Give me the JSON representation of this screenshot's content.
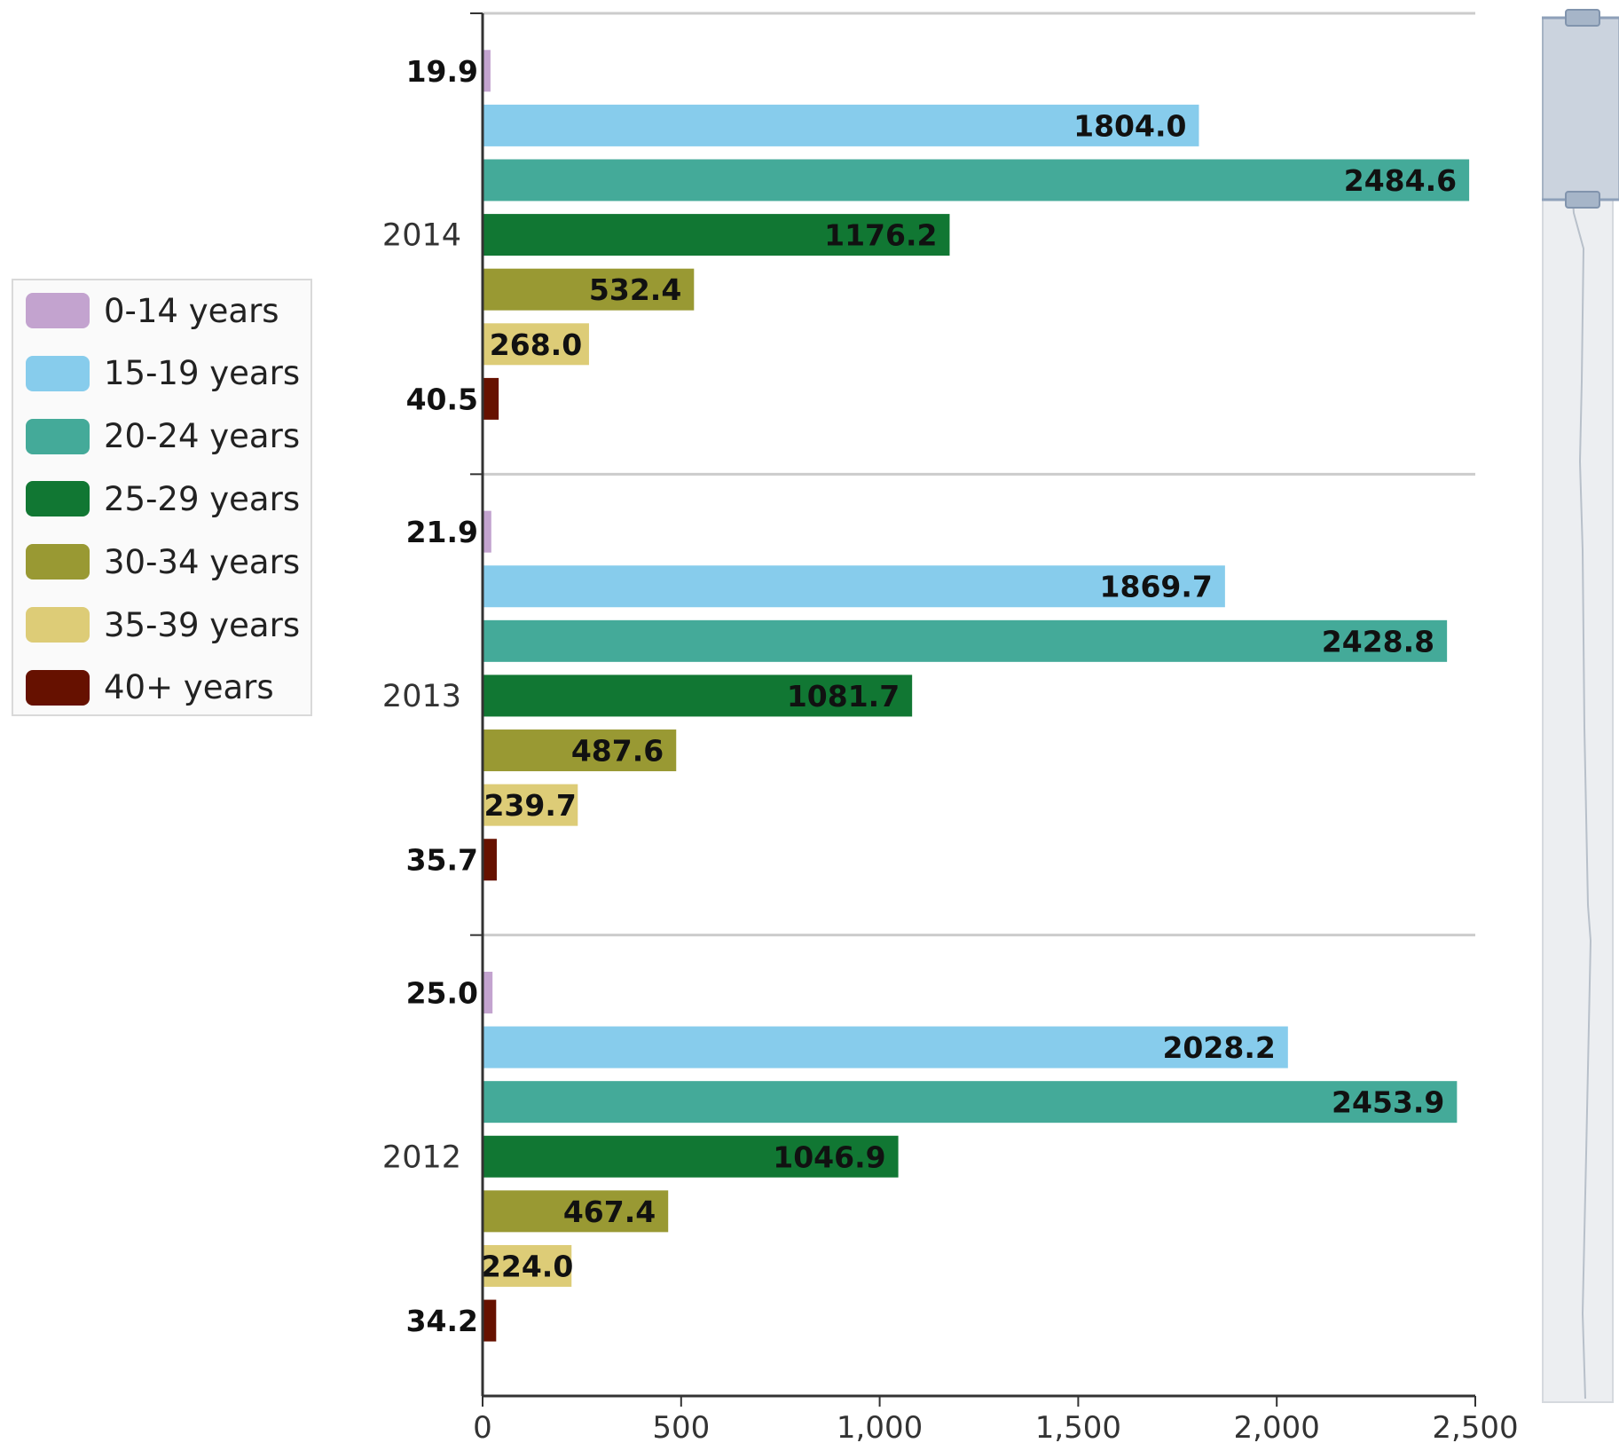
{
  "chart_data": {
    "type": "bar",
    "orientation": "horizontal",
    "categories": [
      "2014",
      "2013",
      "2012"
    ],
    "series": [
      {
        "name": "0-14 years",
        "color": "#c3a3cf",
        "values": [
          19.9,
          21.9,
          25.0
        ],
        "labels": [
          "19.9",
          "21.9",
          "25.0"
        ]
      },
      {
        "name": "15-19 years",
        "color": "#87ccec",
        "values": [
          1804.0,
          1869.7,
          2028.2
        ],
        "labels": [
          "1804.0",
          "1869.7",
          "2028.2"
        ]
      },
      {
        "name": "20-24 years",
        "color": "#44aa99",
        "values": [
          2484.6,
          2428.8,
          2453.9
        ],
        "labels": [
          "2484.6",
          "2428.8",
          "2453.9"
        ]
      },
      {
        "name": "25-29 years",
        "color": "#117733",
        "values": [
          1176.2,
          1081.7,
          1046.9
        ],
        "labels": [
          "1176.2",
          "1081.7",
          "1046.9"
        ]
      },
      {
        "name": "30-34 years",
        "color": "#999933",
        "values": [
          532.4,
          487.6,
          467.4
        ],
        "labels": [
          "532.4",
          "487.6",
          "467.4"
        ]
      },
      {
        "name": "35-39 years",
        "color": "#ddcc77",
        "values": [
          268.0,
          239.7,
          224.0
        ],
        "labels": [
          "268.0",
          "239.7",
          "224.0"
        ]
      },
      {
        "name": "40+ years",
        "color": "#661100",
        "values": [
          40.5,
          35.7,
          34.2
        ],
        "labels": [
          "40.5",
          "35.7",
          "34.2"
        ]
      }
    ],
    "xlim": [
      0,
      2500
    ],
    "xticks": [
      0,
      500,
      1000,
      1500,
      2000,
      2500
    ],
    "xtick_labels": [
      "0",
      "500",
      "1,000",
      "1,500",
      "2,000",
      "2,500"
    ],
    "title": "",
    "xlabel": "",
    "ylabel": "",
    "grid": "category separators",
    "legend": "left"
  }
}
